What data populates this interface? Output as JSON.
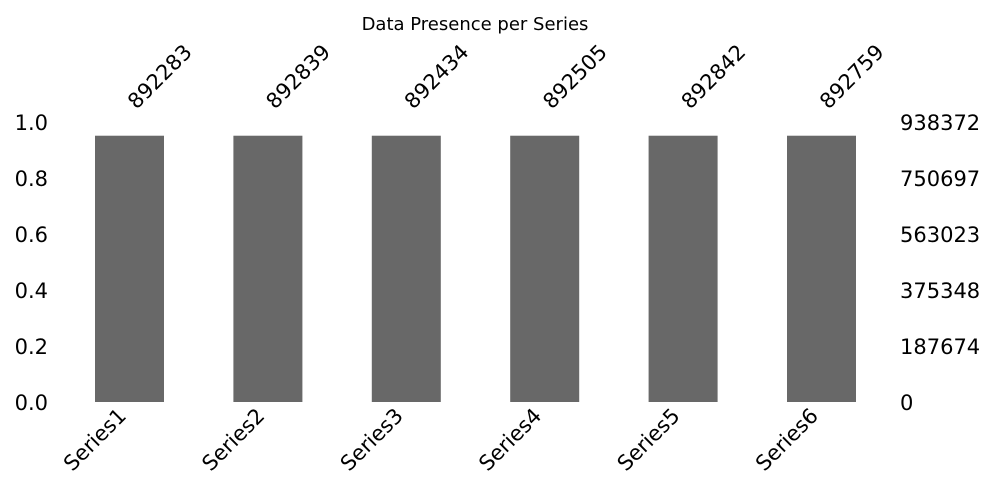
{
  "chart_data": {
    "type": "bar",
    "title": "Data Presence per Series",
    "categories": [
      "Series1",
      "Series2",
      "Series3",
      "Series4",
      "Series5",
      "Series6"
    ],
    "values": [
      0.951,
      0.951,
      0.951,
      0.951,
      0.951,
      0.951
    ],
    "counts": [
      "892283",
      "892839",
      "892434",
      "892505",
      "892842",
      "892759"
    ],
    "ylim": [
      0,
      1.0
    ],
    "left_ticks": [
      "0.0",
      "0.2",
      "0.4",
      "0.6",
      "0.8",
      "1.0"
    ],
    "left_tick_values": [
      0,
      0.2,
      0.4,
      0.6,
      0.8,
      1.0
    ],
    "right_ticks": [
      "0",
      "187674",
      "375348",
      "563023",
      "750697",
      "938372"
    ],
    "bar_color": "#686868",
    "grid": false,
    "xlabel": "",
    "ylabel": ""
  }
}
